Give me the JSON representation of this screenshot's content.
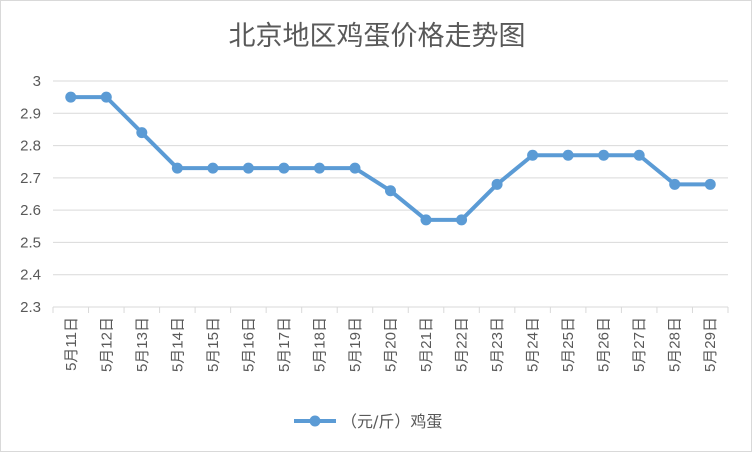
{
  "chart_data": {
    "type": "line",
    "title": "北京地区鸡蛋价格走势图",
    "xlabel": "",
    "ylabel": "",
    "categories": [
      "5月11日",
      "5月12日",
      "5月13日",
      "5月14日",
      "5月15日",
      "5月16日",
      "5月17日",
      "5月18日",
      "5月19日",
      "5月20日",
      "5月21日",
      "5月22日",
      "5月23日",
      "5月24日",
      "5月25日",
      "5月26日",
      "5月27日",
      "5月28日",
      "5月29日"
    ],
    "series": [
      {
        "name": "（元/斤）鸡蛋",
        "values": [
          2.95,
          2.95,
          2.84,
          2.73,
          2.73,
          2.73,
          2.73,
          2.73,
          2.73,
          2.66,
          2.57,
          2.57,
          2.68,
          2.77,
          2.77,
          2.77,
          2.77,
          2.68,
          2.68
        ],
        "color": "#5b9bd5"
      }
    ],
    "ylim": [
      2.3,
      3
    ],
    "yticks": [
      3,
      2.9,
      2.8,
      2.7,
      2.6,
      2.5,
      2.4,
      2.3
    ],
    "grid": true,
    "legend_position": "bottom"
  }
}
